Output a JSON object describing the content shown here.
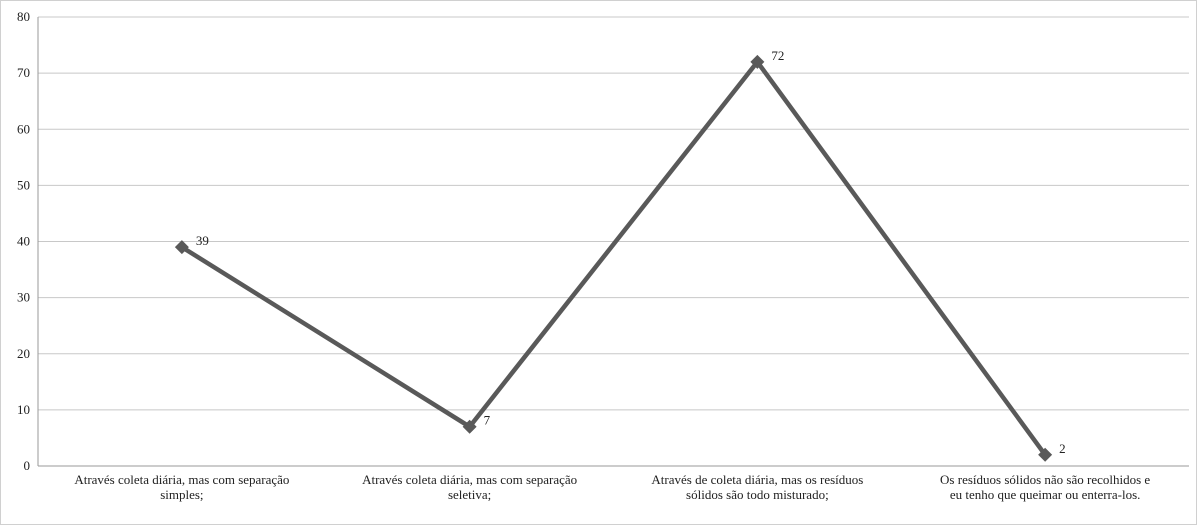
{
  "chart_data": {
    "type": "line",
    "categories": [
      [
        "Através coleta diária, mas com separação",
        "simples;"
      ],
      [
        "Através coleta diária, mas com separação",
        "seletiva;"
      ],
      [
        "Através de coleta diária, mas os resíduos",
        "sólidos são todo misturado;"
      ],
      [
        "Os resíduos sólidos não são recolhidos e",
        "eu tenho que queimar ou enterra-los."
      ]
    ],
    "series": [
      {
        "values": [
          39,
          7,
          72,
          2
        ],
        "data_labels": [
          "39",
          "7",
          "72",
          "2"
        ]
      }
    ],
    "ylim": [
      0,
      80
    ],
    "yticks": [
      "0",
      "10",
      "20",
      "30",
      "40",
      "50",
      "60",
      "70",
      "80"
    ],
    "grid": true,
    "legend": "none",
    "colors": {
      "line": "#595959",
      "grid": "#c8c8c8",
      "axis": "#9a9a9a"
    }
  }
}
